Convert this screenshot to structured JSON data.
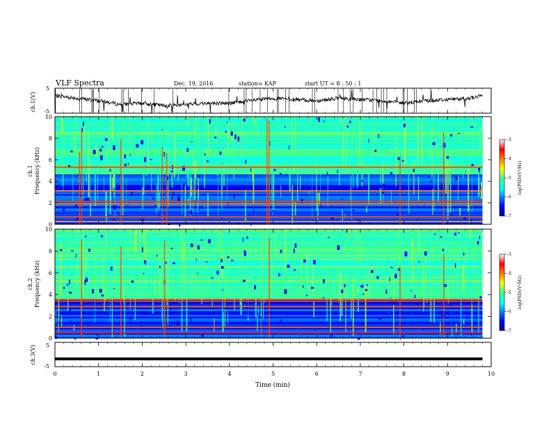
{
  "header": {
    "title": "VLF Spectra",
    "date": "Dec. 19, 2016",
    "station": "station= KAP",
    "start": "start UT = 8 : 50 : 1"
  },
  "chart_data": [
    {
      "type": "line",
      "id": "ch1-waveform",
      "ylabel": "ch.1(V)",
      "ylim": [
        -5,
        5
      ],
      "yticks": [
        "5",
        "-5"
      ],
      "xlim": [
        0,
        10
      ],
      "series": [
        {
          "trend_x": [
            0,
            0.5,
            1,
            1.5,
            2,
            2.5,
            3,
            3.5,
            4,
            4.5,
            5,
            5.5,
            6,
            6.5,
            7,
            7.5,
            8,
            8.5,
            9,
            9.5,
            9.8
          ],
          "trend_y": [
            2,
            1,
            0,
            -1.5,
            -1,
            -2,
            -1.5,
            -1,
            -1,
            0,
            1,
            0.5,
            0,
            1,
            0.5,
            0,
            -1,
            0,
            0.5,
            1,
            2
          ]
        }
      ]
    },
    {
      "type": "heatmap",
      "id": "ch1-spectrogram",
      "ylabel": "Frequency (kHz)",
      "channel_label": "ch.1",
      "ylim": [
        0,
        10
      ],
      "yticks": [
        "0",
        "2",
        "4",
        "6",
        "8",
        "10"
      ],
      "xlim": [
        0,
        10
      ],
      "data_end_min": 9.8,
      "colorbar": {
        "label": "log(PSD)(V²/Hz)",
        "ticks": [
          "-3",
          "-4",
          "-5",
          "-6",
          "-7"
        ],
        "range": [
          -7,
          -3
        ]
      },
      "strong_lines_khz": [
        0.25,
        0.7,
        1.9,
        2.1,
        3.1,
        5.3
      ],
      "impulsive_events_min": [
        0.55,
        0.6,
        1.5,
        2.45,
        2.55,
        4.85,
        4.9,
        7.9,
        8.9
      ]
    },
    {
      "type": "heatmap",
      "id": "ch2-spectrogram",
      "ylabel": "Frequency (kHz)",
      "channel_label": "ch.2",
      "ylim": [
        0,
        10
      ],
      "yticks": [
        "0",
        "2",
        "4",
        "6",
        "8",
        "10"
      ],
      "xlim": [
        0,
        10
      ],
      "data_end_min": 9.8,
      "colorbar": {
        "label": "log(PSD)(V²/Hz)",
        "ticks": [
          "-3",
          "-4",
          "-5",
          "-6",
          "-7"
        ],
        "range": [
          -7,
          -3
        ]
      },
      "strong_lines_khz": [
        0.5,
        1.0,
        2.9,
        3.4,
        3.6
      ],
      "impulsive_events_min": [
        0.6,
        1.5,
        2.5,
        4.9,
        7.9,
        8.9
      ]
    },
    {
      "type": "line",
      "id": "ch3-waveform",
      "ylabel": "ch.3(V)",
      "ylim": [
        -5,
        5
      ],
      "yticks": [
        "5",
        "-5"
      ],
      "xlim": [
        0,
        10
      ],
      "xlabel": "Time (min)",
      "xticks": [
        "0",
        "1",
        "2",
        "3",
        "4",
        "5",
        "6",
        "7",
        "8",
        "9",
        "10"
      ],
      "series": [
        {
          "trend_x": [
            0,
            9.8
          ],
          "trend_y": [
            -1.8,
            -1.8
          ]
        }
      ]
    }
  ]
}
